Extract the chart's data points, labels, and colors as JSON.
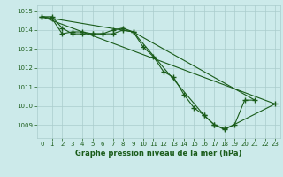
{
  "background_color": "#cceaea",
  "grid_color": "#aacccc",
  "line_color": "#1a5c1a",
  "xlabel": "Graphe pression niveau de la mer (hPa)",
  "ylim": [
    1008.3,
    1015.3
  ],
  "xlim": [
    -0.5,
    23.5
  ],
  "yticks": [
    1009,
    1010,
    1011,
    1012,
    1013,
    1014,
    1015
  ],
  "xticks": [
    0,
    1,
    2,
    3,
    4,
    5,
    6,
    7,
    8,
    9,
    10,
    11,
    12,
    13,
    14,
    15,
    16,
    17,
    18,
    19,
    20,
    21,
    22,
    23
  ],
  "lines": [
    {
      "x": [
        0,
        1,
        2,
        3,
        4,
        5,
        6,
        7,
        8,
        9,
        10,
        11,
        12,
        13,
        14,
        15,
        16,
        17,
        18,
        19,
        20,
        21
      ],
      "y": [
        1014.7,
        1014.7,
        1014.1,
        1013.8,
        1013.8,
        1013.8,
        1013.8,
        1014.0,
        1014.1,
        1013.9,
        1013.1,
        1012.6,
        1011.8,
        1011.5,
        1010.6,
        1009.9,
        1009.5,
        1009.0,
        1008.8,
        1009.0,
        1010.3,
        1010.3
      ],
      "has_markers": true
    },
    {
      "x": [
        0,
        9,
        21
      ],
      "y": [
        1014.7,
        1013.9,
        1010.3
      ],
      "has_markers": false
    },
    {
      "x": [
        0,
        23
      ],
      "y": [
        1014.7,
        1010.1
      ],
      "has_markers": false
    },
    {
      "x": [
        0,
        1,
        2,
        3,
        4,
        5,
        6,
        7,
        8,
        9,
        16,
        17,
        18,
        23
      ],
      "y": [
        1014.7,
        1014.6,
        1013.8,
        1013.9,
        1013.9,
        1013.8,
        1013.8,
        1013.8,
        1014.0,
        1013.9,
        1009.5,
        1009.0,
        1008.75,
        1010.1
      ],
      "has_markers": true
    }
  ]
}
